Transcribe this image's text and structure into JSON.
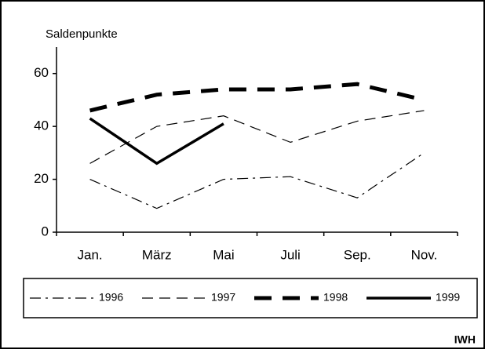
{
  "chart_data": {
    "type": "line",
    "y_label": "Saldenpunkte",
    "source": "IWH",
    "categories": [
      "Jan.",
      "März",
      "Mai",
      "Juli",
      "Sep.",
      "Nov."
    ],
    "series": [
      {
        "name": "1996",
        "color": "#000000",
        "dash": "dashdot",
        "linewidth": 1.2,
        "values": [
          20,
          9,
          20,
          21,
          13,
          30
        ]
      },
      {
        "name": "1997",
        "color": "#000000",
        "dash": "dashed",
        "linewidth": 1.2,
        "values": [
          26,
          40,
          44,
          34,
          42,
          46
        ]
      },
      {
        "name": "1998",
        "color": "#000000",
        "dash": "heavydash",
        "linewidth": 5,
        "values": [
          46,
          52,
          54,
          54,
          56,
          50
        ]
      },
      {
        "name": "1999",
        "color": "#000000",
        "dash": "solid",
        "linewidth": 3.5,
        "values": [
          43,
          26,
          41,
          null,
          null,
          null
        ]
      }
    ],
    "ylim": [
      0,
      70
    ],
    "yticks": [
      0,
      20,
      40,
      60
    ],
    "grid": false
  }
}
